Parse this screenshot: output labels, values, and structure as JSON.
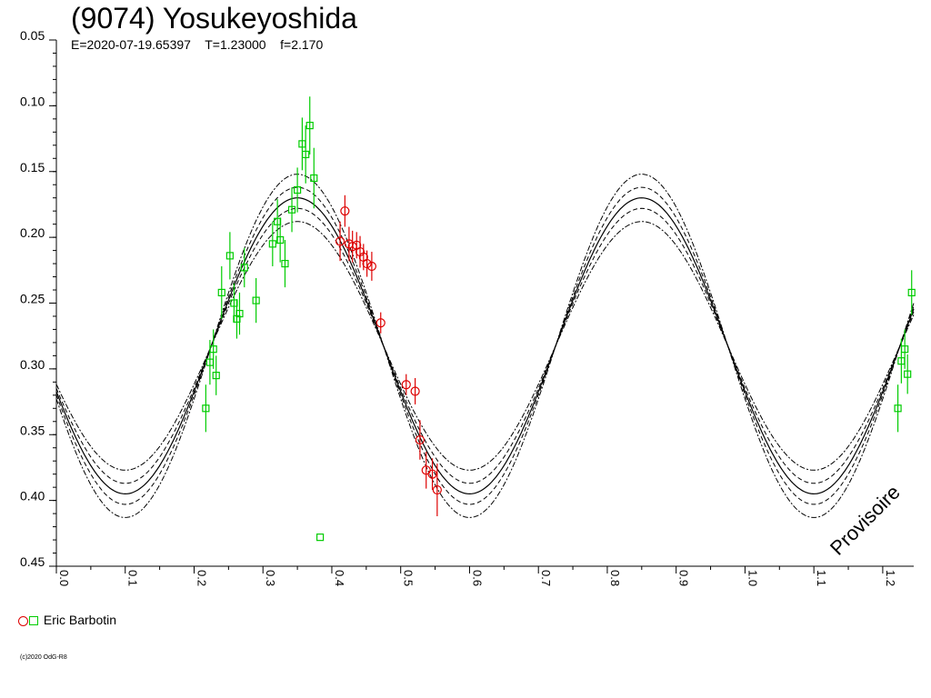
{
  "header": {
    "title": "(9074) Yosukeyoshida",
    "subtitle": "E=2020-07-19.65397    T=1.23000    f=2.170"
  },
  "legend": {
    "observer": "Eric Barbotin"
  },
  "copyright": "(c)2020 OdG-R8",
  "watermark": "Provisoire",
  "colors": {
    "red_series": "#dd0000",
    "green_series": "#00cc00",
    "curve": "#000000"
  },
  "chart_data": {
    "type": "scatter",
    "title": "(9074) Yosukeyoshida",
    "xlabel": "",
    "ylabel": "",
    "xlim": [
      0.0,
      1.245
    ],
    "ylim": [
      0.05,
      0.45
    ],
    "y_inverted": true,
    "x_ticks": [
      "0.0",
      "0.1",
      "0.2",
      "0.3",
      "0.4",
      "0.5",
      "0.6",
      "0.7",
      "0.8",
      "0.9",
      "1.0",
      "1.1",
      "1.2"
    ],
    "y_ticks": [
      "0.05",
      "0.10",
      "0.15",
      "0.20",
      "0.25",
      "0.30",
      "0.35",
      "0.40",
      "0.45"
    ],
    "grid": false,
    "legend_position": "bottom-left",
    "model_curve": {
      "mean": 0.2825,
      "amplitude": 0.1125,
      "period_phase": 0.5,
      "phase_offset": 0.1,
      "envelopes": [
        0.008,
        0.018
      ]
    },
    "series": [
      {
        "name": "Eric Barbotin",
        "marker": "circle",
        "color": "#dd0000",
        "points": [
          {
            "x": 0.412,
            "y": 0.203,
            "err": 0.015
          },
          {
            "x": 0.419,
            "y": 0.18,
            "err": 0.012
          },
          {
            "x": 0.425,
            "y": 0.205,
            "err": 0.013
          },
          {
            "x": 0.43,
            "y": 0.207,
            "err": 0.012
          },
          {
            "x": 0.436,
            "y": 0.206,
            "err": 0.01
          },
          {
            "x": 0.441,
            "y": 0.211,
            "err": 0.012
          },
          {
            "x": 0.446,
            "y": 0.215,
            "err": 0.01
          },
          {
            "x": 0.451,
            "y": 0.22,
            "err": 0.01
          },
          {
            "x": 0.458,
            "y": 0.222,
            "err": 0.011
          },
          {
            "x": 0.471,
            "y": 0.265,
            "err": 0.008
          },
          {
            "x": 0.508,
            "y": 0.312,
            "err": 0.008
          },
          {
            "x": 0.521,
            "y": 0.317,
            "err": 0.01
          },
          {
            "x": 0.528,
            "y": 0.354,
            "err": 0.015
          },
          {
            "x": 0.537,
            "y": 0.377,
            "err": 0.014
          },
          {
            "x": 0.546,
            "y": 0.38,
            "err": 0.012
          },
          {
            "x": 0.553,
            "y": 0.392,
            "err": 0.02
          }
        ]
      },
      {
        "name": "Eric Barbotin",
        "marker": "square",
        "color": "#00cc00",
        "points": [
          {
            "x": 0.217,
            "y": 0.33,
            "err": 0.018
          },
          {
            "x": 0.223,
            "y": 0.295,
            "err": 0.017
          },
          {
            "x": 0.228,
            "y": 0.285,
            "err": 0.015
          },
          {
            "x": 0.232,
            "y": 0.305,
            "err": 0.015
          },
          {
            "x": 0.24,
            "y": 0.242,
            "err": 0.02
          },
          {
            "x": 0.252,
            "y": 0.214,
            "err": 0.018
          },
          {
            "x": 0.258,
            "y": 0.25,
            "err": 0.015
          },
          {
            "x": 0.262,
            "y": 0.262,
            "err": 0.015
          },
          {
            "x": 0.266,
            "y": 0.258,
            "err": 0.016
          },
          {
            "x": 0.273,
            "y": 0.223,
            "err": 0.015
          },
          {
            "x": 0.29,
            "y": 0.248,
            "err": 0.017
          },
          {
            "x": 0.314,
            "y": 0.205,
            "err": 0.017
          },
          {
            "x": 0.321,
            "y": 0.188,
            "err": 0.017
          },
          {
            "x": 0.325,
            "y": 0.202,
            "err": 0.017
          },
          {
            "x": 0.332,
            "y": 0.22,
            "err": 0.018
          },
          {
            "x": 0.342,
            "y": 0.179,
            "err": 0.017
          },
          {
            "x": 0.35,
            "y": 0.164,
            "err": 0.017
          },
          {
            "x": 0.357,
            "y": 0.129,
            "err": 0.02
          },
          {
            "x": 0.362,
            "y": 0.137,
            "err": 0.022
          },
          {
            "x": 0.368,
            "y": 0.115,
            "err": 0.022
          },
          {
            "x": 0.374,
            "y": 0.155,
            "err": 0.023
          },
          {
            "x": 0.383,
            "y": 0.428,
            "err": 0.0
          },
          {
            "x": 1.222,
            "y": 0.33,
            "err": 0.018
          },
          {
            "x": 1.227,
            "y": 0.294,
            "err": 0.017
          },
          {
            "x": 1.232,
            "y": 0.285,
            "err": 0.015
          },
          {
            "x": 1.236,
            "y": 0.304,
            "err": 0.015
          },
          {
            "x": 1.242,
            "y": 0.242,
            "err": 0.017
          }
        ]
      }
    ]
  }
}
